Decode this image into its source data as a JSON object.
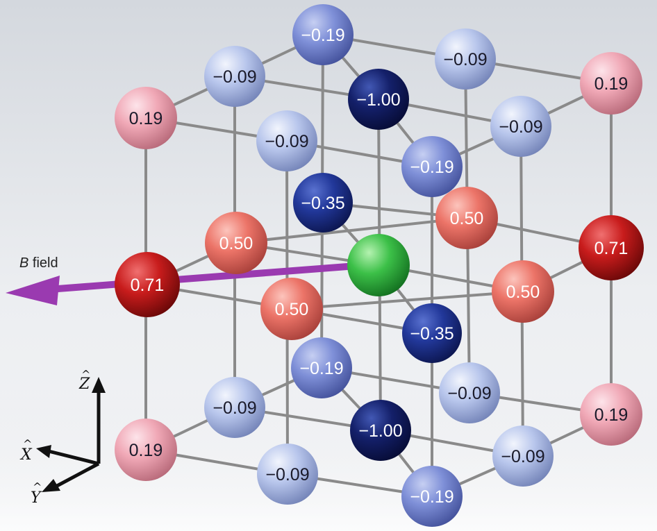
{
  "field_label_italic": "B",
  "field_label_rest": " field",
  "axes": {
    "z": "Z",
    "x": "X",
    "y": "Y",
    "hat": "^"
  },
  "colors": {
    "ring1_light_pink": "#f0a8b6",
    "ring_half_salmon": "#ec7468",
    "ring071_red": "#c81c1c",
    "ring_m009_light_blue": "#b8c6ec",
    "ring_m019_blue": "#7f90d8",
    "ring_m035_navy": "#22389a",
    "ring_m100_deep_navy": "#14206a",
    "center_green": "#3cc048",
    "field_arrow": "#9a3ab0",
    "rod": "#8a8a8a"
  },
  "atoms": [
    {
      "id": "a0",
      "label": "0.19",
      "tone": "pink"
    },
    {
      "id": "a1",
      "label": "0.71",
      "tone": "red"
    },
    {
      "id": "a2",
      "label": "0.19",
      "tone": "pink"
    },
    {
      "id": "a3",
      "label": "0.19",
      "tone": "pink"
    },
    {
      "id": "a4",
      "label": "0.71",
      "tone": "red"
    },
    {
      "id": "a5",
      "label": "0.19",
      "tone": "pink"
    },
    {
      "id": "a6",
      "label": "0.50",
      "tone": "salmon"
    },
    {
      "id": "a7",
      "label": "0.50",
      "tone": "salmon"
    },
    {
      "id": "a8",
      "label": "0.50",
      "tone": "salmon"
    },
    {
      "id": "a9",
      "label": "0.50",
      "tone": "salmon"
    },
    {
      "id": "a10",
      "label": "−0.09",
      "tone": "lightblue"
    },
    {
      "id": "a11",
      "label": "−0.09",
      "tone": "lightblue"
    },
    {
      "id": "a12",
      "label": "−0.09",
      "tone": "lightblue"
    },
    {
      "id": "a13",
      "label": "−0.09",
      "tone": "lightblue"
    },
    {
      "id": "a14",
      "label": "−0.09",
      "tone": "lightblue"
    },
    {
      "id": "a15",
      "label": "−0.09",
      "tone": "lightblue"
    },
    {
      "id": "a16",
      "label": "−0.09",
      "tone": "lightblue"
    },
    {
      "id": "a17",
      "label": "−0.09",
      "tone": "lightblue"
    },
    {
      "id": "a18",
      "label": "−0.19",
      "tone": "blue"
    },
    {
      "id": "a19",
      "label": "−0.19",
      "tone": "blue"
    },
    {
      "id": "a20",
      "label": "−0.19",
      "tone": "blue"
    },
    {
      "id": "a21",
      "label": "−0.19",
      "tone": "blue"
    },
    {
      "id": "a22",
      "label": "−0.35",
      "tone": "navy"
    },
    {
      "id": "a23",
      "label": "−0.35",
      "tone": "navy"
    },
    {
      "id": "a24",
      "label": "−1.00",
      "tone": "deepnavy"
    },
    {
      "id": "a25",
      "label": "−1.00",
      "tone": "deepnavy"
    },
    {
      "id": "a26",
      "label": "",
      "tone": "green"
    }
  ]
}
